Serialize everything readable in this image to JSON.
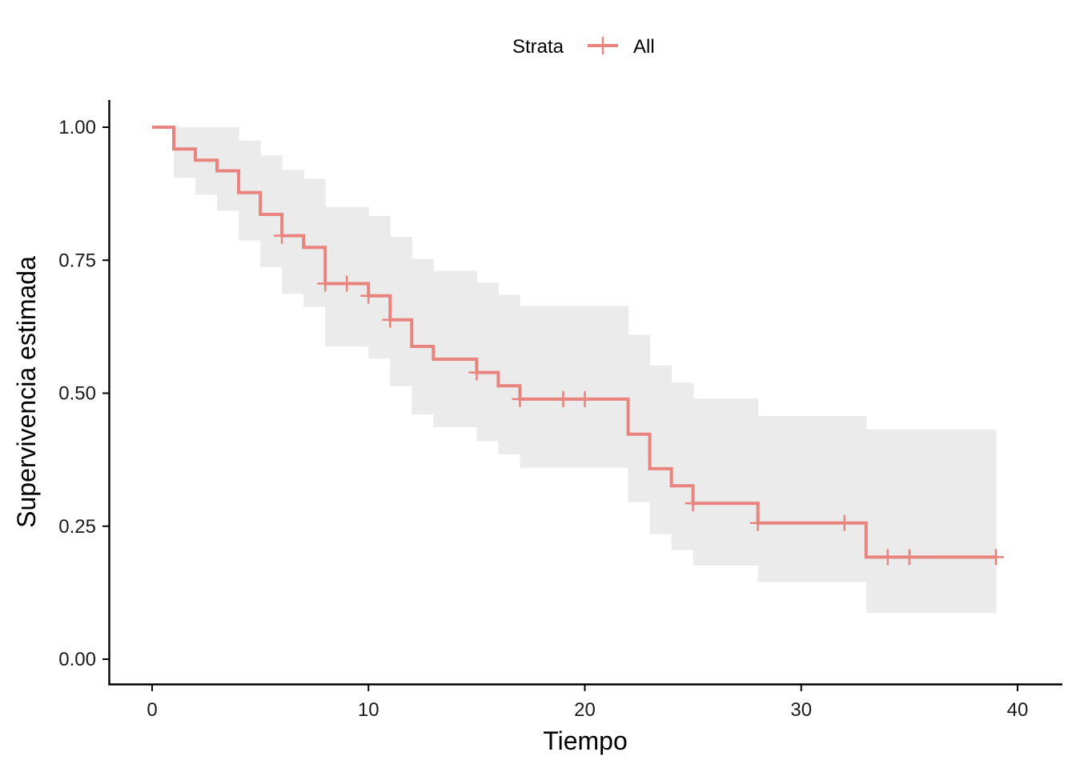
{
  "chart_data": {
    "type": "line",
    "subtype": "kaplan-meier-step",
    "xlabel": "Tiempo",
    "ylabel": "Supervivencia estimada",
    "xlim": [
      -2,
      42
    ],
    "ylim": [
      -0.05,
      1.05
    ],
    "xticks": [
      0,
      10,
      20,
      30,
      40
    ],
    "yticks": [
      0,
      0.25,
      0.5,
      0.75,
      1.0
    ],
    "xtick_labels": [
      "0",
      "10",
      "20",
      "30",
      "40"
    ],
    "ytick_labels": [
      "0.00",
      "0.25",
      "0.50",
      "0.75",
      "1.00"
    ],
    "grid": false,
    "legend": {
      "position": "top",
      "title": "Strata",
      "entries": [
        "All"
      ]
    },
    "series": [
      {
        "name": "All",
        "color": "#E8837E",
        "steps": [
          {
            "t": 0,
            "s": 1.0,
            "lo": 1.0,
            "hi": 1.0
          },
          {
            "t": 1,
            "s": 0.959,
            "lo": 0.905,
            "hi": 1.0
          },
          {
            "t": 2,
            "s": 0.938,
            "lo": 0.873,
            "hi": 1.0
          },
          {
            "t": 3,
            "s": 0.918,
            "lo": 0.843,
            "hi": 1.0
          },
          {
            "t": 4,
            "s": 0.877,
            "lo": 0.787,
            "hi": 0.975
          },
          {
            "t": 5,
            "s": 0.836,
            "lo": 0.737,
            "hi": 0.947
          },
          {
            "t": 6,
            "s": 0.796,
            "lo": 0.687,
            "hi": 0.92
          },
          {
            "t": 7,
            "s": 0.774,
            "lo": 0.662,
            "hi": 0.903
          },
          {
            "t": 8,
            "s": 0.706,
            "lo": 0.588,
            "hi": 0.85
          },
          {
            "t": 10,
            "s": 0.683,
            "lo": 0.565,
            "hi": 0.833
          },
          {
            "t": 11,
            "s": 0.638,
            "lo": 0.513,
            "hi": 0.794
          },
          {
            "t": 12,
            "s": 0.588,
            "lo": 0.46,
            "hi": 0.752
          },
          {
            "t": 13,
            "s": 0.564,
            "lo": 0.436,
            "hi": 0.73
          },
          {
            "t": 15,
            "s": 0.539,
            "lo": 0.41,
            "hi": 0.708
          },
          {
            "t": 16,
            "s": 0.514,
            "lo": 0.385,
            "hi": 0.685
          },
          {
            "t": 17,
            "s": 0.489,
            "lo": 0.36,
            "hi": 0.664
          },
          {
            "t": 22,
            "s": 0.423,
            "lo": 0.295,
            "hi": 0.61
          },
          {
            "t": 23,
            "s": 0.358,
            "lo": 0.235,
            "hi": 0.552
          },
          {
            "t": 24,
            "s": 0.326,
            "lo": 0.205,
            "hi": 0.52
          },
          {
            "t": 25,
            "s": 0.293,
            "lo": 0.176,
            "hi": 0.49
          },
          {
            "t": 28,
            "s": 0.256,
            "lo": 0.145,
            "hi": 0.457
          },
          {
            "t": 33,
            "s": 0.192,
            "lo": 0.087,
            "hi": 0.432
          }
        ],
        "end_time": 39,
        "censored": [
          6,
          8,
          9,
          10,
          11,
          15,
          17,
          19,
          20,
          25,
          28,
          32,
          34,
          35,
          39
        ]
      }
    ]
  }
}
